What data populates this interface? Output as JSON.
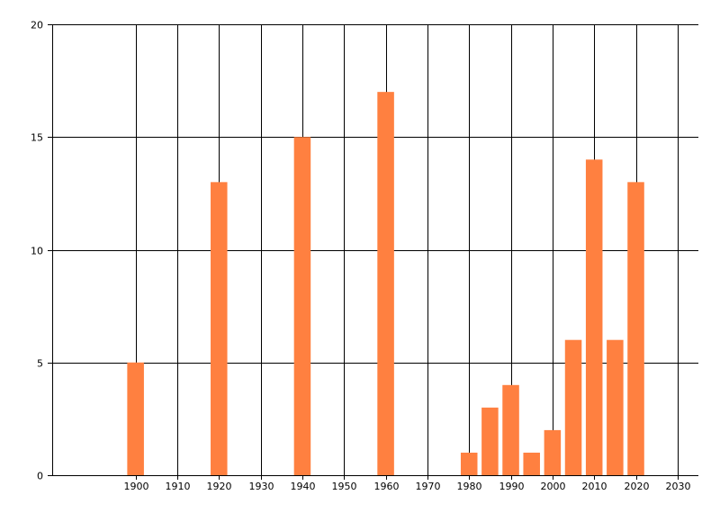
{
  "chart_data": {
    "type": "bar",
    "title": "",
    "xlabel": "",
    "ylabel": "",
    "xlim": [
      1880,
      2035
    ],
    "ylim": [
      0,
      20
    ],
    "x_ticks": [
      1900,
      1910,
      1920,
      1930,
      1940,
      1950,
      1960,
      1970,
      1980,
      1990,
      2000,
      2010,
      2020,
      2030
    ],
    "y_ticks": [
      0,
      5,
      10,
      15,
      20
    ],
    "grid": true,
    "legend": "none",
    "bar_color": "#ff8040",
    "x": [
      1900,
      1920,
      1940,
      1960,
      1980,
      1985,
      1990,
      1995,
      2000,
      2005,
      2010,
      2015,
      2020
    ],
    "values": [
      5,
      13,
      15,
      17,
      1,
      3,
      4,
      1,
      2,
      6,
      14,
      6,
      13
    ]
  }
}
